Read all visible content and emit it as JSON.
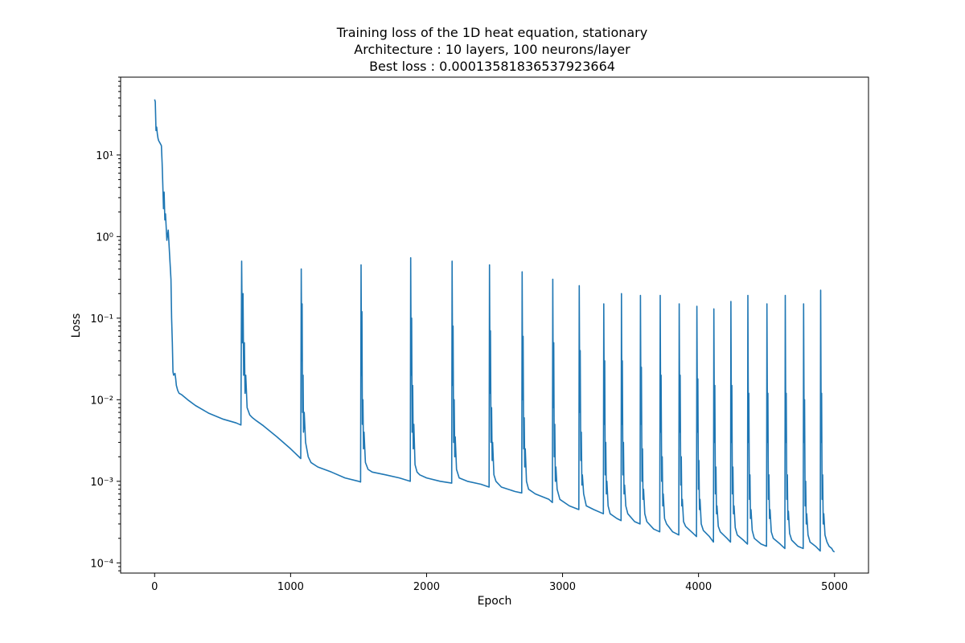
{
  "chart_data": {
    "type": "line",
    "title": [
      "Training loss of the 1D heat equation, stationary",
      "Architecture : 10 layers, 100 neurons/layer",
      "Best loss : 0.00013581836537923664"
    ],
    "xlabel": "Epoch",
    "ylabel": "Loss",
    "yscale": "log",
    "xlim": [
      -250,
      5250
    ],
    "ylim": [
      7.5e-05,
      90
    ],
    "x_ticks": [
      0,
      1000,
      2000,
      3000,
      4000,
      5000
    ],
    "x_tick_labels": [
      "0",
      "1000",
      "2000",
      "3000",
      "4000",
      "5000"
    ],
    "y_ticks": [
      0.0001,
      0.001,
      0.01,
      0.1,
      1,
      10
    ],
    "y_tick_labels": [
      "10⁻⁴",
      "10⁻³",
      "10⁻²",
      "10⁻¹",
      "10⁰",
      "10¹"
    ],
    "grid": false,
    "legend": "none",
    "series": [
      {
        "color": "#1f77b4",
        "x": [
          0,
          5,
          10,
          15,
          20,
          25,
          30,
          40,
          50,
          55,
          60,
          65,
          70,
          75,
          80,
          90,
          100,
          110,
          120,
          125,
          130,
          135,
          140,
          150,
          155,
          160,
          170,
          180,
          200,
          250,
          300,
          400,
          500,
          600,
          635,
          640,
          645,
          650,
          655,
          660,
          665,
          670,
          680,
          700,
          720,
          750,
          800,
          900,
          1000,
          1075,
          1078,
          1082,
          1085,
          1088,
          1092,
          1095,
          1100,
          1110,
          1130,
          1150,
          1200,
          1300,
          1400,
          1500,
          1515,
          1518,
          1522,
          1525,
          1528,
          1532,
          1536,
          1540,
          1550,
          1570,
          1600,
          1700,
          1800,
          1880,
          1883,
          1887,
          1890,
          1894,
          1898,
          1902,
          1906,
          1915,
          1930,
          1950,
          2000,
          2100,
          2185,
          2188,
          2192,
          2195,
          2199,
          2203,
          2207,
          2211,
          2220,
          2240,
          2300,
          2400,
          2460,
          2463,
          2467,
          2470,
          2474,
          2478,
          2482,
          2486,
          2495,
          2510,
          2550,
          2650,
          2700,
          2703,
          2707,
          2710,
          2714,
          2718,
          2722,
          2726,
          2735,
          2750,
          2800,
          2900,
          2925,
          2928,
          2932,
          2935,
          2939,
          2943,
          2947,
          2951,
          2960,
          2980,
          3050,
          3120,
          3123,
          3127,
          3130,
          3134,
          3138,
          3142,
          3146,
          3155,
          3175,
          3230,
          3300,
          3303,
          3307,
          3310,
          3314,
          3318,
          3322,
          3326,
          3335,
          3350,
          3400,
          3430,
          3433,
          3437,
          3440,
          3444,
          3448,
          3452,
          3456,
          3465,
          3480,
          3530,
          3570,
          3573,
          3577,
          3580,
          3584,
          3588,
          3592,
          3596,
          3605,
          3620,
          3670,
          3715,
          3718,
          3722,
          3725,
          3729,
          3733,
          3737,
          3741,
          3750,
          3765,
          3810,
          3855,
          3858,
          3862,
          3865,
          3869,
          3873,
          3877,
          3881,
          3890,
          3905,
          3960,
          3985,
          3988,
          3992,
          3995,
          3999,
          4003,
          4007,
          4011,
          4020,
          4035,
          4080,
          4110,
          4113,
          4117,
          4120,
          4124,
          4128,
          4132,
          4136,
          4145,
          4160,
          4210,
          4235,
          4238,
          4242,
          4245,
          4249,
          4253,
          4257,
          4261,
          4270,
          4285,
          4330,
          4360,
          4363,
          4367,
          4370,
          4374,
          4378,
          4382,
          4386,
          4395,
          4410,
          4460,
          4500,
          4503,
          4507,
          4510,
          4514,
          4518,
          4522,
          4526,
          4535,
          4550,
          4600,
          4635,
          4638,
          4642,
          4645,
          4649,
          4653,
          4657,
          4661,
          4670,
          4685,
          4730,
          4770,
          4773,
          4777,
          4780,
          4784,
          4788,
          4792,
          4796,
          4805,
          4820,
          4860,
          4895,
          4898,
          4902,
          4905,
          4909,
          4913,
          4917,
          4921,
          4930,
          4945,
          4960,
          4980,
          4990,
          5000
        ],
        "y": [
          48,
          45,
          20,
          22,
          18,
          16,
          15,
          14,
          13,
          8,
          4.5,
          2.2,
          3.5,
          1.6,
          1.9,
          0.9,
          1.2,
          0.6,
          0.3,
          0.1,
          0.05,
          0.022,
          0.02,
          0.021,
          0.018,
          0.015,
          0.013,
          0.012,
          0.0115,
          0.0098,
          0.0085,
          0.0068,
          0.0058,
          0.0052,
          0.0049,
          0.5,
          0.05,
          0.2,
          0.02,
          0.05,
          0.012,
          0.02,
          0.008,
          0.0065,
          0.006,
          0.0055,
          0.0048,
          0.0035,
          0.0025,
          0.0019,
          0.4,
          0.03,
          0.15,
          0.007,
          0.02,
          0.004,
          0.007,
          0.003,
          0.002,
          0.0017,
          0.0015,
          0.0013,
          0.0011,
          0.001,
          0.00098,
          0.45,
          0.02,
          0.12,
          0.005,
          0.01,
          0.0025,
          0.004,
          0.0017,
          0.0014,
          0.0013,
          0.0012,
          0.0011,
          0.001,
          0.55,
          0.02,
          0.1,
          0.004,
          0.015,
          0.0025,
          0.005,
          0.0016,
          0.0013,
          0.0012,
          0.0011,
          0.001,
          0.00095,
          0.5,
          0.015,
          0.08,
          0.003,
          0.01,
          0.002,
          0.0035,
          0.0014,
          0.0011,
          0.001,
          0.00092,
          0.00085,
          0.45,
          0.012,
          0.07,
          0.003,
          0.008,
          0.0018,
          0.003,
          0.0012,
          0.001,
          0.00085,
          0.00075,
          0.00072,
          0.37,
          0.01,
          0.06,
          0.0025,
          0.006,
          0.0015,
          0.0025,
          0.001,
          0.0008,
          0.0007,
          0.0006,
          0.00055,
          0.3,
          0.008,
          0.05,
          0.002,
          0.005,
          0.001,
          0.0015,
          0.0008,
          0.0006,
          0.0005,
          0.00045,
          0.25,
          0.007,
          0.04,
          0.0018,
          0.004,
          0.0009,
          0.0012,
          0.0007,
          0.0005,
          0.00045,
          0.0004,
          0.15,
          0.005,
          0.03,
          0.0012,
          0.003,
          0.0007,
          0.001,
          0.0005,
          0.0004,
          0.00035,
          0.00033,
          0.2,
          0.005,
          0.03,
          0.0012,
          0.003,
          0.0007,
          0.0009,
          0.0005,
          0.0004,
          0.00032,
          0.0003,
          0.19,
          0.005,
          0.025,
          0.001,
          0.0025,
          0.0006,
          0.0008,
          0.0004,
          0.00032,
          0.00026,
          0.00024,
          0.19,
          0.004,
          0.02,
          0.001,
          0.002,
          0.0005,
          0.0007,
          0.00035,
          0.0003,
          0.00024,
          0.00022,
          0.15,
          0.004,
          0.02,
          0.0009,
          0.002,
          0.0005,
          0.0006,
          0.00032,
          0.00028,
          0.00023,
          0.00021,
          0.14,
          0.004,
          0.018,
          0.0008,
          0.0018,
          0.00045,
          0.0006,
          0.0003,
          0.00025,
          0.00021,
          0.00018,
          0.13,
          0.003,
          0.015,
          0.0007,
          0.0015,
          0.0004,
          0.0005,
          0.00028,
          0.00024,
          0.0002,
          0.00018,
          0.16,
          0.003,
          0.015,
          0.0007,
          0.0015,
          0.0004,
          0.0005,
          0.00027,
          0.00022,
          0.00019,
          0.00017,
          0.19,
          0.003,
          0.012,
          0.0006,
          0.0012,
          0.00035,
          0.00045,
          0.00025,
          0.0002,
          0.00017,
          0.00016,
          0.15,
          0.003,
          0.012,
          0.0006,
          0.0012,
          0.00035,
          0.00045,
          0.00024,
          0.0002,
          0.00017,
          0.00015,
          0.19,
          0.003,
          0.012,
          0.0006,
          0.0012,
          0.00034,
          0.00043,
          0.00023,
          0.00019,
          0.00016,
          0.00015,
          0.15,
          0.003,
          0.01,
          0.0005,
          0.001,
          0.0003,
          0.0004,
          0.00022,
          0.00018,
          0.00016,
          0.00014,
          0.22,
          0.003,
          0.012,
          0.0006,
          0.0012,
          0.0003,
          0.0004,
          0.00022,
          0.00018,
          0.00016,
          0.00015,
          0.00014,
          0.000136
        ]
      }
    ]
  }
}
